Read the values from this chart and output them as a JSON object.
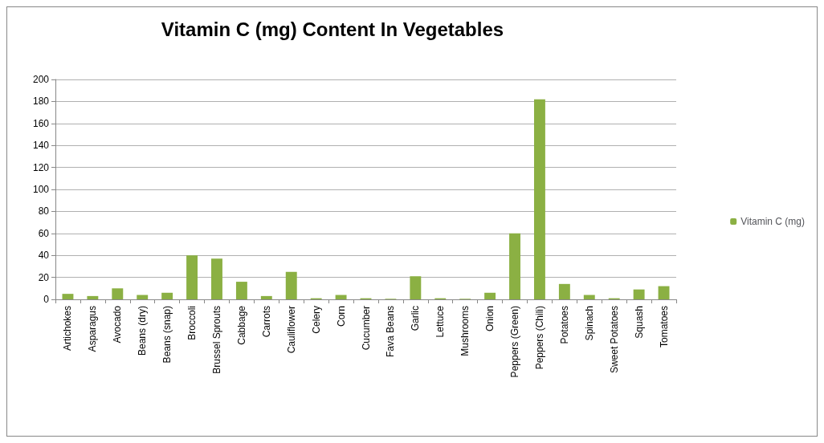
{
  "chart_data": {
    "type": "bar",
    "title": "Vitamin C (mg) Content In Vegetables",
    "categories": [
      "Artichokes",
      "Asparagus",
      "Avocado",
      "Beans (dry)",
      "Beans (snap)",
      "Broccoli",
      "Brussel Sprouts",
      "Cabbage",
      "Carrots",
      "Cauliflower",
      "Celery",
      "Corn",
      "Cucumber",
      "Fava Beans",
      "Garlic",
      "Lettuce",
      "Mushrooms",
      "Onion",
      "Peppers (Green)",
      "Peppers (Chili)",
      "Potatoes",
      "Spinach",
      "Sweet Potatoes",
      "Squash",
      "Tomatoes"
    ],
    "series": [
      {
        "name": "Vitamin C (mg)",
        "color": "#8bb043",
        "values": [
          5,
          3,
          10,
          4,
          6,
          40,
          37,
          16,
          3,
          25,
          1,
          4,
          1,
          0.5,
          21,
          1,
          0.5,
          6,
          60,
          182,
          14,
          4,
          1,
          9,
          12
        ]
      }
    ],
    "ylim": [
      0,
      200
    ],
    "yticks": [
      0,
      20,
      40,
      60,
      80,
      100,
      120,
      140,
      160,
      180,
      200
    ],
    "grid": "y",
    "legend": "right"
  }
}
